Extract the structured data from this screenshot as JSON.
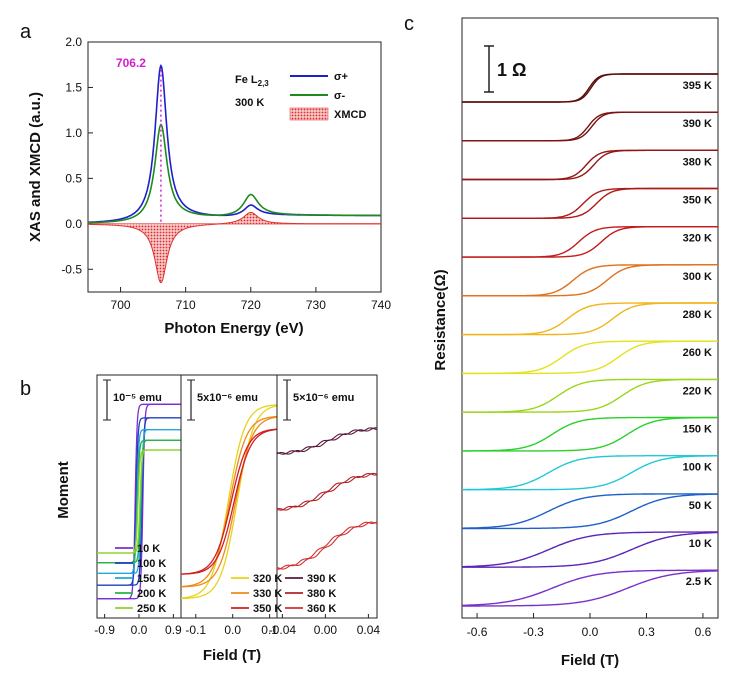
{
  "figure_letters": [
    "a",
    "b",
    "c"
  ],
  "chart_data": [
    {
      "panel": "a",
      "type": "line",
      "xlabel": "Photon Energy (eV)",
      "ylabel": "XAS and XMCD (a.u.)",
      "xlim": [
        695,
        740
      ],
      "ylim": [
        -0.75,
        2.0
      ],
      "x_ticks": [
        700,
        710,
        720,
        730,
        740
      ],
      "y_ticks": [
        "-0.5",
        "0.0",
        "0.5",
        "1.0",
        "1.5",
        "2.0"
      ],
      "peak_label": "706.2",
      "peak_x": 706.2,
      "label_element": "Fe L",
      "label_subscript": "2,3",
      "label_temp": "300 K",
      "series": [
        {
          "name": "σ+",
          "color": "#1f1fcc",
          "peaks": [
            {
              "x": 706.2,
              "amp": 1.72,
              "w": 1.1
            },
            {
              "x": 720.0,
              "amp": 0.12,
              "w": 1.3
            }
          ],
          "edges": [
            {
              "x": 707.0,
              "h": 0.06,
              "w": 1.0
            },
            {
              "x": 720.0,
              "h": 0.03,
              "w": 1.0
            }
          ]
        },
        {
          "name": "σ-",
          "color": "#1e8a1e",
          "peaks": [
            {
              "x": 706.2,
              "amp": 1.07,
              "w": 1.15
            },
            {
              "x": 720.0,
              "amp": 0.24,
              "w": 1.4
            }
          ],
          "edges": [
            {
              "x": 707.0,
              "h": 0.06,
              "w": 1.0
            },
            {
              "x": 720.0,
              "h": 0.03,
              "w": 1.0
            }
          ]
        },
        {
          "name": "XMCD",
          "color": "#e03030",
          "fill": true,
          "peaks": [
            {
              "x": 706.2,
              "amp": -0.65,
              "w": 1.15
            },
            {
              "x": 720.0,
              "amp": 0.13,
              "w": 1.4
            }
          ],
          "edges": []
        }
      ]
    },
    {
      "panel": "b",
      "type": "line",
      "xlabel": "Field (T)",
      "ylabel": "Moment",
      "subpanels": [
        {
          "scale_label": "10⁻⁵ emu",
          "xlim": [
            -1.1,
            1.1
          ],
          "x_ticks": [
            "-0.9",
            "0.0",
            "0.9"
          ],
          "x_tick_vals": [
            -0.9,
            0.0,
            0.9
          ],
          "loops": [
            {
              "name": "10 K",
              "color": "#7a2fd6",
              "Ms": 1.0,
              "Hc": 0.1,
              "w": 0.05
            },
            {
              "name": "100 K",
              "color": "#1c3fbf",
              "Ms": 0.86,
              "Hc": 0.075,
              "w": 0.05
            },
            {
              "name": "150 K",
              "color": "#22a7d9",
              "Ms": 0.74,
              "Hc": 0.055,
              "w": 0.05
            },
            {
              "name": "200 K",
              "color": "#27b34a",
              "Ms": 0.63,
              "Hc": 0.04,
              "w": 0.05
            },
            {
              "name": "250 K",
              "color": "#8ad42a",
              "Ms": 0.53,
              "Hc": 0.025,
              "w": 0.05
            }
          ]
        },
        {
          "scale_label": "5x10⁻⁶ emu",
          "xlim": [
            -0.14,
            0.12
          ],
          "x_ticks": [
            "-0.1",
            "0.0",
            "0.1"
          ],
          "x_tick_vals": [
            -0.1,
            0.0,
            0.1
          ],
          "loops": [
            {
              "name": "320 K",
              "color": "#e8d21a",
              "Ms": 1.0,
              "Hc": 0.012,
              "w": 0.045
            },
            {
              "name": "330 K",
              "color": "#f08a1a",
              "Ms": 0.88,
              "Hc": 0.008,
              "w": 0.045
            },
            {
              "name": "350 K",
              "color": "#d41e1e",
              "Ms": 0.75,
              "Hc": 0.004,
              "w": 0.045
            }
          ]
        },
        {
          "scale_label": "5×10⁻⁶ emu",
          "xlim": [
            -0.045,
            0.048
          ],
          "x_ticks": [
            "-0.04",
            "0.00",
            "0.04"
          ],
          "x_tick_vals": [
            -0.04,
            0.0,
            0.04
          ],
          "loops": [
            {
              "name": "390 K",
              "color": "#5a1a3c",
              "offset": 0.62,
              "amp": 0.14
            },
            {
              "name": "380 K",
              "color": "#b5202a",
              "offset": 0.1,
              "amp": 0.2
            },
            {
              "name": "360 K",
              "color": "#d23030",
              "offset": -0.45,
              "amp": 0.26
            }
          ]
        }
      ]
    },
    {
      "panel": "c",
      "type": "line",
      "xlabel": "Field (T)",
      "ylabel": "Resistance(Ω)",
      "xlim": [
        -0.68,
        0.68
      ],
      "x_ticks": [
        "-0.6",
        "-0.3",
        "0.0",
        "0.3",
        "0.6"
      ],
      "x_tick_vals": [
        -0.6,
        -0.3,
        0.0,
        0.3,
        0.6
      ],
      "scale_bar_label": "1 Ω",
      "curves": [
        {
          "name": "395 K",
          "color": "#5a0f0f",
          "Hc": 0.005,
          "w": 0.05
        },
        {
          "name": "390 K",
          "color": "#7a1212",
          "Hc": 0.01,
          "w": 0.06
        },
        {
          "name": "380 K",
          "color": "#941515",
          "Hc": 0.02,
          "w": 0.07
        },
        {
          "name": "350 K",
          "color": "#b01818",
          "Hc": 0.035,
          "w": 0.08
        },
        {
          "name": "320 K",
          "color": "#c41c1c",
          "Hc": 0.06,
          "w": 0.09
        },
        {
          "name": "300 K",
          "color": "#e0701a",
          "Hc": 0.09,
          "w": 0.1
        },
        {
          "name": "280 K",
          "color": "#f2b51a",
          "Hc": 0.12,
          "w": 0.11
        },
        {
          "name": "260 K",
          "color": "#e4e21a",
          "Hc": 0.15,
          "w": 0.12
        },
        {
          "name": "220 K",
          "color": "#9ad61a",
          "Hc": 0.17,
          "w": 0.13
        },
        {
          "name": "150 K",
          "color": "#2ccf2c",
          "Hc": 0.2,
          "w": 0.14
        },
        {
          "name": "100 K",
          "color": "#20c8d8",
          "Hc": 0.22,
          "w": 0.16
        },
        {
          "name": "50 K",
          "color": "#1f5fc8",
          "Hc": 0.22,
          "w": 0.19
        },
        {
          "name": "10 K",
          "color": "#5b24b8",
          "Hc": 0.22,
          "w": 0.22
        },
        {
          "name": "2.5 K",
          "color": "#7a2fc8",
          "Hc": 0.2,
          "w": 0.24
        }
      ]
    }
  ]
}
